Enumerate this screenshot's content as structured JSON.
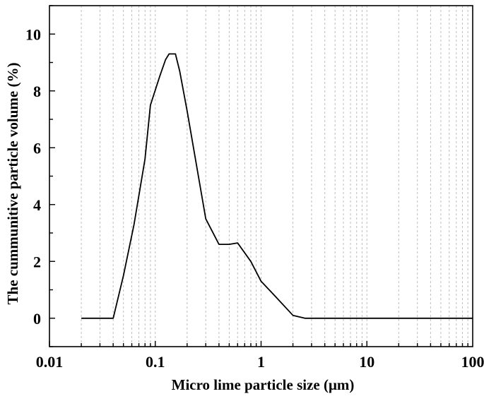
{
  "chart_data": {
    "type": "line",
    "title": "",
    "xlabel": "Micro lime particle size (μm)",
    "ylabel": "The cummunitive particle volume (%)",
    "x_scale": "log",
    "xlim": [
      0.01,
      100
    ],
    "ylim": [
      -1,
      11
    ],
    "x_ticks": [
      0.01,
      0.1,
      1,
      10,
      100
    ],
    "x_tick_labels": [
      "0.01",
      "0.1",
      "1",
      "10",
      "100"
    ],
    "y_ticks": [
      0,
      2,
      4,
      6,
      8,
      10
    ],
    "y_tick_labels": [
      "0",
      "2",
      "4",
      "6",
      "8",
      "10"
    ],
    "grid": "vertical dashed minor and major gridlines",
    "line_color": "#000000",
    "series": [
      {
        "x": [
          0.02,
          0.04,
          0.05,
          0.063,
          0.08,
          0.09,
          0.11,
          0.125,
          0.135,
          0.155,
          0.17,
          0.2,
          0.3,
          0.4,
          0.5,
          0.6,
          0.8,
          1,
          1.3,
          2,
          2.6,
          100
        ],
        "values": [
          0,
          0,
          1.5,
          3.3,
          5.6,
          7.5,
          8.5,
          9.1,
          9.3,
          9.3,
          8.7,
          7.3,
          3.5,
          2.6,
          2.6,
          2.65,
          2,
          1.3,
          0.85,
          0.1,
          0,
          0
        ]
      }
    ]
  }
}
